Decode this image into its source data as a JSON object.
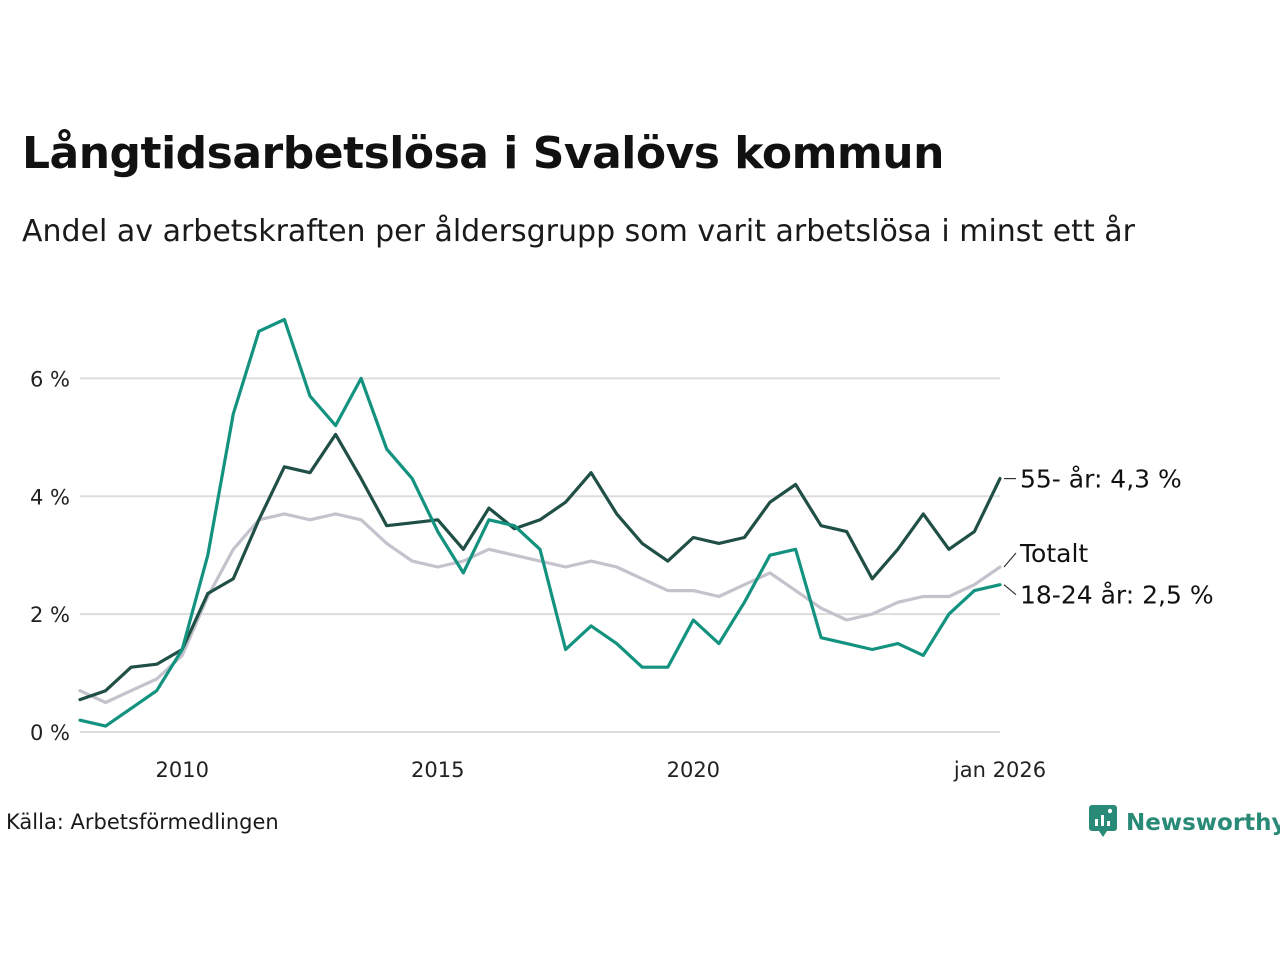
{
  "title": "Långtidsarbetslösa i Svalövs kommun",
  "subtitle": "Andel av arbetskraften per åldersgrupp som varit arbetslösa i minst ett år",
  "source": "Källa: Arbetsförmedlingen",
  "brand": {
    "name": "Newsworthy",
    "icon": "newsworthy-logo-icon",
    "color": "#2a8a78"
  },
  "chart_data": {
    "type": "line",
    "title": "Långtidsarbetslösa i Svalövs kommun",
    "xlabel": "",
    "ylabel": "",
    "xlim": [
      2008.0,
      2026.0
    ],
    "ylim": [
      0,
      7.5
    ],
    "yticks": [
      0,
      2,
      4,
      6
    ],
    "ytick_labels": [
      "0 %",
      "2 %",
      "4 %",
      "6 %"
    ],
    "xticks": [
      2010,
      2015,
      2020,
      2026
    ],
    "xtick_labels": [
      "2010",
      "2015",
      "2020",
      "jan 2026"
    ],
    "grid": true,
    "legend": "direct labels at line ends",
    "series": [
      {
        "name": "Totalt",
        "label": "Totalt",
        "color": "#c4c2cc",
        "x": [
          2008.0,
          2008.5,
          2009.0,
          2009.5,
          2010.0,
          2010.5,
          2011.0,
          2011.5,
          2012.0,
          2012.5,
          2013.0,
          2013.5,
          2014.0,
          2014.5,
          2015.0,
          2015.5,
          2016.0,
          2016.5,
          2017.0,
          2017.5,
          2018.0,
          2018.5,
          2019.0,
          2019.5,
          2020.0,
          2020.5,
          2021.0,
          2021.5,
          2022.0,
          2022.5,
          2023.0,
          2023.5,
          2024.0,
          2024.5,
          2025.0,
          2025.5,
          2026.0
        ],
        "values": [
          0.7,
          0.5,
          0.7,
          0.9,
          1.3,
          2.3,
          3.1,
          3.6,
          3.7,
          3.6,
          3.7,
          3.6,
          3.2,
          2.9,
          2.8,
          2.9,
          3.1,
          3.0,
          2.9,
          2.8,
          2.9,
          2.8,
          2.6,
          2.4,
          2.4,
          2.3,
          2.5,
          2.7,
          2.4,
          2.1,
          1.9,
          2.0,
          2.2,
          2.3,
          2.3,
          2.5,
          2.8
        ]
      },
      {
        "name": "55- år",
        "label": "55- år: 4,3 %",
        "color": "#1f4f45",
        "x": [
          2008.0,
          2008.5,
          2009.0,
          2009.5,
          2010.0,
          2010.5,
          2011.0,
          2011.5,
          2012.0,
          2012.5,
          2013.0,
          2013.5,
          2014.0,
          2014.5,
          2015.0,
          2015.5,
          2016.0,
          2016.5,
          2017.0,
          2017.5,
          2018.0,
          2018.5,
          2019.0,
          2019.5,
          2020.0,
          2020.5,
          2021.0,
          2021.5,
          2022.0,
          2022.5,
          2023.0,
          2023.5,
          2024.0,
          2024.5,
          2025.0,
          2025.5,
          2026.0
        ],
        "values": [
          0.55,
          0.7,
          1.1,
          1.15,
          1.4,
          2.35,
          2.6,
          3.6,
          4.5,
          4.4,
          5.05,
          4.3,
          3.5,
          3.55,
          3.6,
          3.1,
          3.8,
          3.45,
          3.6,
          3.9,
          4.4,
          3.7,
          3.2,
          2.9,
          3.3,
          3.2,
          3.3,
          3.9,
          4.2,
          3.5,
          3.4,
          2.6,
          3.1,
          3.7,
          3.1,
          3.4,
          4.3
        ]
      },
      {
        "name": "18-24 år",
        "label": "18-24 år: 2,5 %",
        "color": "#13937f",
        "x": [
          2008.0,
          2008.5,
          2009.0,
          2009.5,
          2010.0,
          2010.5,
          2011.0,
          2011.5,
          2012.0,
          2012.5,
          2013.0,
          2013.5,
          2014.0,
          2014.5,
          2015.0,
          2015.5,
          2016.0,
          2016.5,
          2017.0,
          2017.5,
          2018.0,
          2018.5,
          2019.0,
          2019.5,
          2020.0,
          2020.5,
          2021.0,
          2021.5,
          2022.0,
          2022.5,
          2023.0,
          2023.5,
          2024.0,
          2024.5,
          2025.0,
          2025.5,
          2026.0
        ],
        "values": [
          0.2,
          0.1,
          0.4,
          0.7,
          1.4,
          3.0,
          5.4,
          6.8,
          7.0,
          5.7,
          5.2,
          6.0,
          4.8,
          4.3,
          3.4,
          2.7,
          3.6,
          3.5,
          3.1,
          1.4,
          1.8,
          1.5,
          1.1,
          1.1,
          1.9,
          1.5,
          2.2,
          3.0,
          3.1,
          1.6,
          1.5,
          1.4,
          1.5,
          1.3,
          2.0,
          2.4,
          2.5
        ]
      }
    ]
  }
}
